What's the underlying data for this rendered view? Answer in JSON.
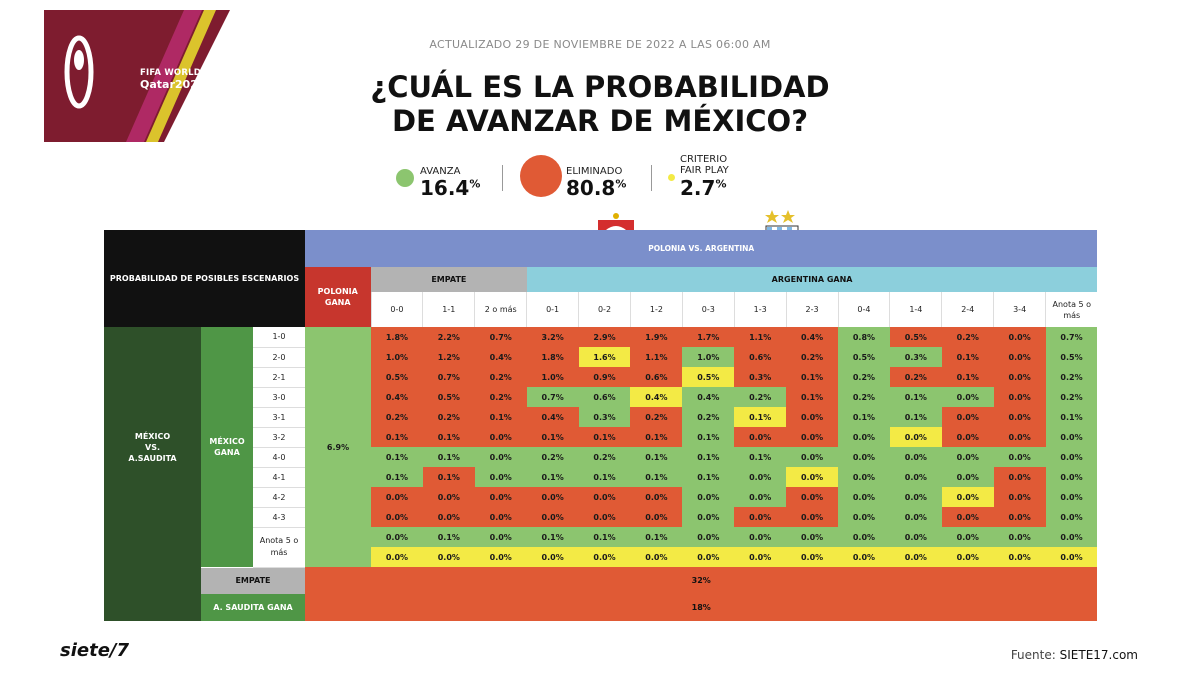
{
  "logo": {
    "line1": "FIFA WORLD CUP",
    "line2": "Qatar2022"
  },
  "updated": "ACTUALIZADO 29 DE NOVIEMBRE DE 2022 A LAS 06:00 AM",
  "title_line1": "¿CUÁL ES LA PROBABILIDAD",
  "title_line2": "DE AVANZAR DE MÉXICO?",
  "stats": [
    {
      "label1": "AVANZA",
      "label2": "",
      "value": "16.4",
      "unit": "%",
      "color": "#8cc56f"
    },
    {
      "label1": "ELIMINADO",
      "label2": "",
      "value": "80.8",
      "unit": "%",
      "color": "#e05a35"
    },
    {
      "label1": "CRITERIO",
      "label2": "FAIR PLAY",
      "value": "2.7",
      "unit": "%",
      "color": "#f3ea45"
    }
  ],
  "colors": {
    "green": "#8cc56f",
    "red": "#e05a35",
    "yellow": "#f3ea45",
    "blue_header": "#7b8fcb",
    "cyan_header": "#8ccfdc",
    "dark_green": "#2e5029"
  },
  "chart_data": {
    "type": "heatmap",
    "title": "¿CUÁL ES LA PROBABILIDAD DE AVANZAR DE MÉXICO?",
    "corner_label": "PROBABILIDAD DE POSIBLES ESCENARIOS",
    "top_match": "POLONIA VS. ARGENTINA",
    "left_match_lines": [
      "MÉXICO",
      "VS.",
      "A.SAUDITA"
    ],
    "polonia_gana_label": "POLONIA GANA",
    "polonia_gana_value": "6.9%",
    "empate_header": "EMPATE",
    "argentina_gana_header": "ARGENTINA GANA",
    "mexico_gana_label": "MÉXICO GANA",
    "columns": [
      "0-0",
      "1-1",
      "2 o más",
      "0-1",
      "0-2",
      "1-2",
      "0-3",
      "1-3",
      "2-3",
      "0-4",
      "1-4",
      "2-4",
      "3-4",
      "Anota 5 o más"
    ],
    "row_labels": [
      "1-0",
      "2-0",
      "2-1",
      "3-0",
      "3-1",
      "3-2",
      "4-0",
      "4-1",
      "4-2",
      "4-3",
      "Anota 5 o más",
      ""
    ],
    "values": [
      [
        "1.8%",
        "2.2%",
        "0.7%",
        "3.2%",
        "2.9%",
        "1.9%",
        "1.7%",
        "1.1%",
        "0.4%",
        "0.8%",
        "0.5%",
        "0.2%",
        "0.0%",
        "0.7%"
      ],
      [
        "1.0%",
        "1.2%",
        "0.4%",
        "1.8%",
        "1.6%",
        "1.1%",
        "1.0%",
        "0.6%",
        "0.2%",
        "0.5%",
        "0.3%",
        "0.1%",
        "0.0%",
        "0.5%"
      ],
      [
        "0.5%",
        "0.7%",
        "0.2%",
        "1.0%",
        "0.9%",
        "0.6%",
        "0.5%",
        "0.3%",
        "0.1%",
        "0.2%",
        "0.2%",
        "0.1%",
        "0.0%",
        "0.2%"
      ],
      [
        "0.4%",
        "0.5%",
        "0.2%",
        "0.7%",
        "0.6%",
        "0.4%",
        "0.4%",
        "0.2%",
        "0.1%",
        "0.2%",
        "0.1%",
        "0.0%",
        "0.0%",
        "0.2%"
      ],
      [
        "0.2%",
        "0.2%",
        "0.1%",
        "0.4%",
        "0.3%",
        "0.2%",
        "0.2%",
        "0.1%",
        "0.0%",
        "0.1%",
        "0.1%",
        "0.0%",
        "0.0%",
        "0.1%"
      ],
      [
        "0.1%",
        "0.1%",
        "0.0%",
        "0.1%",
        "0.1%",
        "0.1%",
        "0.1%",
        "0.0%",
        "0.0%",
        "0.0%",
        "0.0%",
        "0.0%",
        "0.0%",
        "0.0%"
      ],
      [
        "0.1%",
        "0.1%",
        "0.0%",
        "0.2%",
        "0.2%",
        "0.1%",
        "0.1%",
        "0.1%",
        "0.0%",
        "0.0%",
        "0.0%",
        "0.0%",
        "0.0%",
        "0.0%"
      ],
      [
        "0.1%",
        "0.1%",
        "0.0%",
        "0.1%",
        "0.1%",
        "0.1%",
        "0.1%",
        "0.0%",
        "0.0%",
        "0.0%",
        "0.0%",
        "0.0%",
        "0.0%",
        "0.0%"
      ],
      [
        "0.0%",
        "0.0%",
        "0.0%",
        "0.0%",
        "0.0%",
        "0.0%",
        "0.0%",
        "0.0%",
        "0.0%",
        "0.0%",
        "0.0%",
        "0.0%",
        "0.0%",
        "0.0%"
      ],
      [
        "0.0%",
        "0.0%",
        "0.0%",
        "0.0%",
        "0.0%",
        "0.0%",
        "0.0%",
        "0.0%",
        "0.0%",
        "0.0%",
        "0.0%",
        "0.0%",
        "0.0%",
        "0.0%"
      ],
      [
        "0.0%",
        "0.1%",
        "0.0%",
        "0.1%",
        "0.1%",
        "0.1%",
        "0.0%",
        "0.0%",
        "0.0%",
        "0.0%",
        "0.0%",
        "0.0%",
        "0.0%",
        "0.0%"
      ],
      [
        "0.0%",
        "0.0%",
        "0.0%",
        "0.0%",
        "0.0%",
        "0.0%",
        "0.0%",
        "0.0%",
        "0.0%",
        "0.0%",
        "0.0%",
        "0.0%",
        "0.0%",
        "0.0%"
      ]
    ],
    "cell_colors": [
      [
        "r",
        "r",
        "r",
        "r",
        "r",
        "r",
        "r",
        "r",
        "r",
        "g",
        "r",
        "r",
        "r",
        "g"
      ],
      [
        "r",
        "r",
        "r",
        "r",
        "y",
        "r",
        "g",
        "r",
        "r",
        "g",
        "g",
        "r",
        "r",
        "g"
      ],
      [
        "r",
        "r",
        "r",
        "r",
        "r",
        "r",
        "y",
        "r",
        "r",
        "g",
        "r",
        "r",
        "r",
        "g"
      ],
      [
        "r",
        "r",
        "r",
        "g",
        "g",
        "y",
        "g",
        "g",
        "r",
        "g",
        "g",
        "g",
        "r",
        "g"
      ],
      [
        "r",
        "r",
        "r",
        "r",
        "g",
        "r",
        "g",
        "y",
        "r",
        "g",
        "g",
        "r",
        "r",
        "g"
      ],
      [
        "r",
        "r",
        "r",
        "r",
        "r",
        "r",
        "g",
        "r",
        "r",
        "g",
        "y",
        "r",
        "r",
        "g"
      ],
      [
        "g",
        "g",
        "g",
        "g",
        "g",
        "g",
        "g",
        "g",
        "g",
        "g",
        "g",
        "g",
        "g",
        "g"
      ],
      [
        "g",
        "r",
        "g",
        "g",
        "g",
        "g",
        "g",
        "g",
        "y",
        "g",
        "g",
        "g",
        "r",
        "g"
      ],
      [
        "r",
        "r",
        "r",
        "r",
        "r",
        "r",
        "g",
        "g",
        "r",
        "g",
        "g",
        "y",
        "r",
        "g"
      ],
      [
        "r",
        "r",
        "r",
        "r",
        "r",
        "r",
        "g",
        "r",
        "r",
        "g",
        "g",
        "r",
        "r",
        "g"
      ],
      [
        "g",
        "g",
        "g",
        "g",
        "g",
        "g",
        "g",
        "g",
        "g",
        "g",
        "g",
        "g",
        "g",
        "g"
      ],
      [
        "y",
        "y",
        "y",
        "y",
        "y",
        "y",
        "y",
        "y",
        "y",
        "y",
        "y",
        "y",
        "y",
        "y"
      ]
    ],
    "empate_row_label": "EMPATE",
    "empate_row_value": "32%",
    "saudita_row_label": "A. SAUDITA GANA",
    "saudita_row_value": "18%"
  },
  "footer": {
    "brand": "siete/7",
    "source_label": "Fuente:",
    "source_value": "SIETE17.com"
  }
}
